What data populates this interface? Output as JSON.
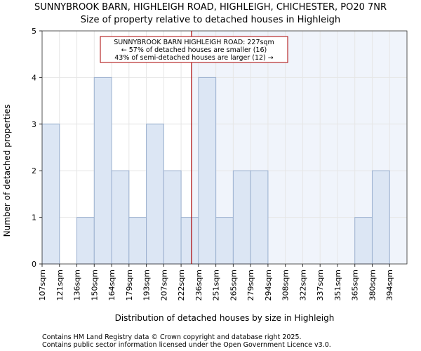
{
  "colors": {
    "bar_fill": "#dce6f4",
    "bar_stroke": "#9bb0cf",
    "highlight_bg": "#f0f4fb",
    "grid": "#e6e6e6",
    "marker": "#aa0000",
    "annotation_border": "#aa0000"
  },
  "chart_data": {
    "type": "bar",
    "title": "SUNNYBROOK BARN, HIGHLEIGH ROAD, HIGHLEIGH, CHICHESTER, PO20 7NR",
    "subtitle": "Size of property relative to detached houses in Highleigh",
    "xlabel": "Distribution of detached houses by size in Highleigh",
    "ylabel": "Number of detached properties",
    "ylim": [
      0,
      5
    ],
    "yticks": [
      0,
      1,
      2,
      3,
      4,
      5
    ],
    "grid": true,
    "categories": [
      "107sqm",
      "121sqm",
      "136sqm",
      "150sqm",
      "164sqm",
      "179sqm",
      "193sqm",
      "207sqm",
      "222sqm",
      "236sqm",
      "251sqm",
      "265sqm",
      "279sqm",
      "294sqm",
      "308sqm",
      "322sqm",
      "337sqm",
      "351sqm",
      "365sqm",
      "380sqm",
      "394sqm"
    ],
    "values": [
      3,
      0,
      1,
      4,
      2,
      1,
      3,
      2,
      1,
      4,
      1,
      2,
      2,
      0,
      0,
      0,
      0,
      0,
      1,
      2,
      0
    ],
    "marker": {
      "value_sqm": 227,
      "position_bins": 8.6,
      "lines": [
        "SUNNYBROOK BARN HIGHLEIGH ROAD: 227sqm",
        "← 57% of detached houses are smaller (16)",
        "43% of semi-detached houses are larger (12) →"
      ]
    }
  },
  "footer": {
    "line1": "Contains HM Land Registry data © Crown copyright and database right 2025.",
    "line2": "Contains public sector information licensed under the Open Government Licence v3.0."
  }
}
